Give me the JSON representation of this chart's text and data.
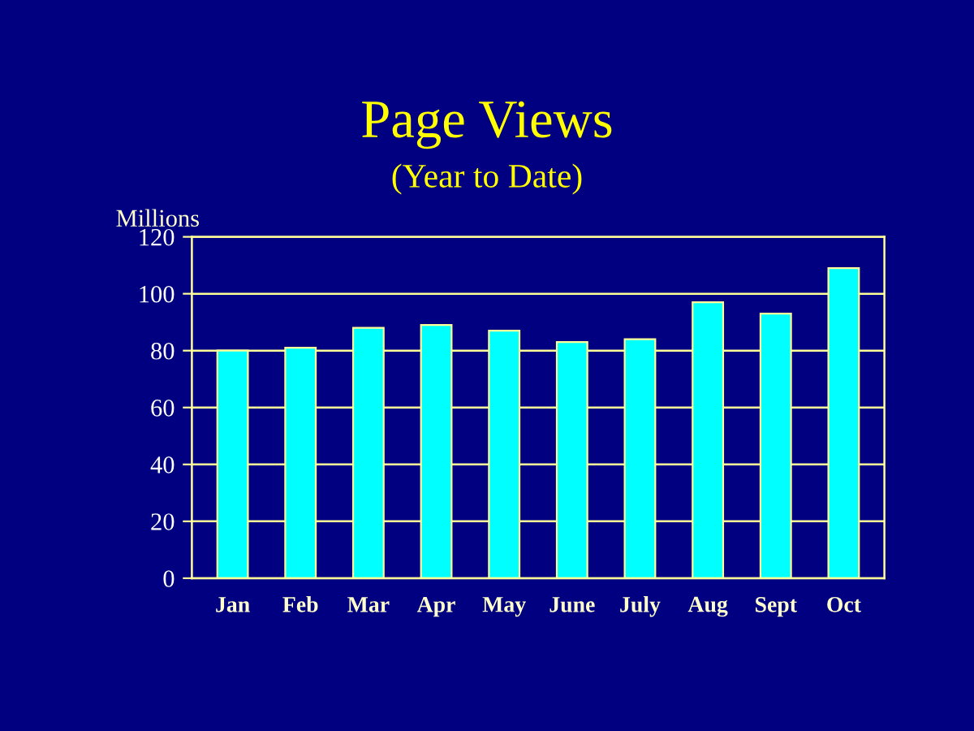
{
  "chart_data": {
    "type": "bar",
    "title": "Page Views",
    "subtitle": "(Year to Date)",
    "ylabel": "Millions",
    "categories": [
      "Jan",
      "Feb",
      "Mar",
      "Apr",
      "May",
      "June",
      "July",
      "Aug",
      "Sept",
      "Oct"
    ],
    "values": [
      80,
      81,
      88,
      89,
      87,
      83,
      84,
      97,
      93,
      109
    ],
    "color": "#00ffff",
    "ylim": [
      0,
      120
    ],
    "yticks": [
      0,
      20,
      40,
      60,
      80,
      100,
      120
    ],
    "grid": "y",
    "legend": false
  }
}
